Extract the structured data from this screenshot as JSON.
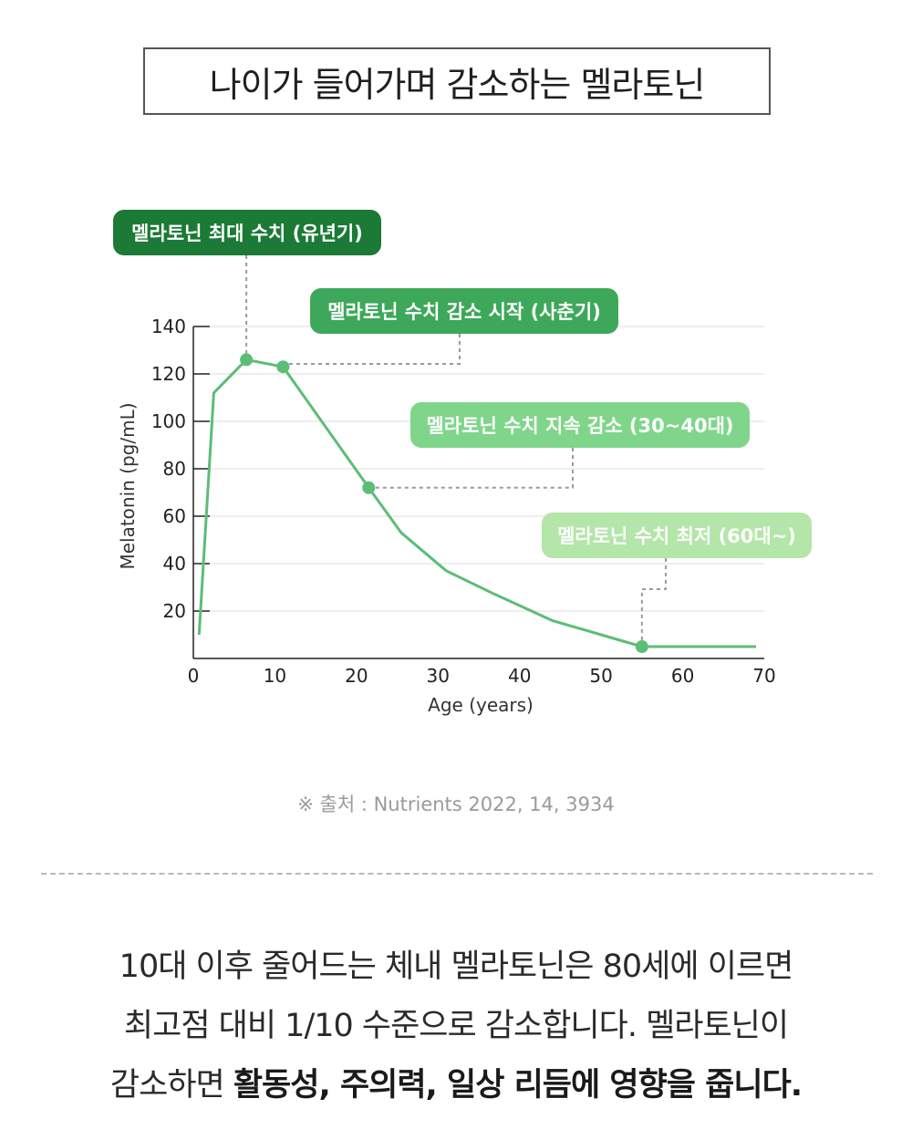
{
  "title": "나이가 들어가며 감소하는 멜라토닌",
  "chart_data": {
    "type": "line",
    "xlabel": "Age (years)",
    "ylabel": "Melatonin (pg/mL)",
    "xlim": [
      0,
      70
    ],
    "ylim": [
      0,
      140
    ],
    "x_ticks": [
      0,
      10,
      20,
      30,
      40,
      50,
      60,
      70
    ],
    "y_ticks": [
      20,
      40,
      60,
      80,
      100,
      120,
      140
    ],
    "grid": true,
    "series": [
      {
        "color": "#5cbd76",
        "x": [
          0.7,
          2.5,
          6.5,
          11,
          21.5,
          25.5,
          31,
          37,
          44,
          50,
          55,
          62,
          69
        ],
        "y": [
          10,
          112,
          126,
          123,
          72,
          53,
          37,
          27,
          16,
          10,
          5,
          5,
          5
        ]
      }
    ],
    "markers": [
      {
        "x": 6.5,
        "y": 126
      },
      {
        "x": 11,
        "y": 123
      },
      {
        "x": 21.5,
        "y": 72
      },
      {
        "x": 55,
        "y": 5
      }
    ],
    "annotations": [
      {
        "text": "멜라토닌 최대 수치 (유년기)",
        "bg": "#1b7a35",
        "fg": "#ffffff"
      },
      {
        "text": "멜라토닌 수치 감소 시작 (사춘기)",
        "bg": "#3ea85a",
        "fg": "#ffffff"
      },
      {
        "text": "멜라토닌 수치 지속 감소 (30~40대)",
        "bg": "#7fd68a",
        "fg": "#ffffff"
      },
      {
        "text": "멜라토닌 수치 최저 (60대~)",
        "bg": "#b3e6a8",
        "fg": "#ffffff"
      }
    ]
  },
  "source": "※ 출처 : Nutrients 2022, 14, 3934",
  "body": {
    "line1": "10대 이후 줄어드는 체내 멜라토닌은 80세에 이르면",
    "line2": "최고점 대비 1/10 수준으로 감소합니다. 멜라토닌이",
    "line3_plain": "감소하면 ",
    "line3_bold": "활동성, 주의력, 일상 리듬에 영향을 줍니다."
  }
}
